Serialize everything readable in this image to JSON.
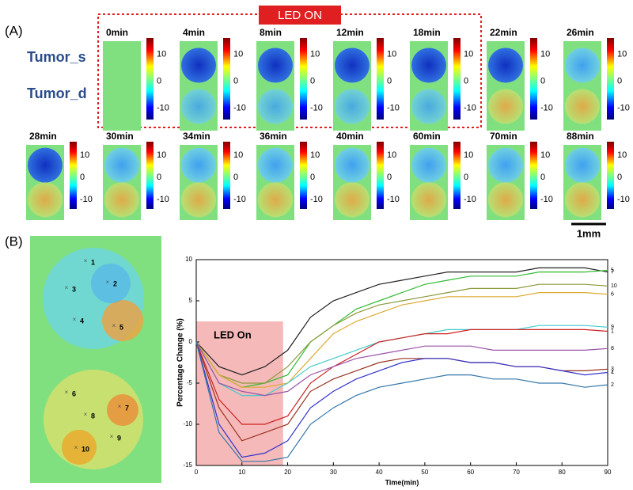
{
  "panel_a": {
    "label": "(A)",
    "led_label": "LED ON",
    "rows": [
      "Tumor_s",
      "Tumor_d"
    ],
    "frames": [
      "0min",
      "4min",
      "8min",
      "12min",
      "18min",
      "22min",
      "26min",
      "28min",
      "30min",
      "34min",
      "36min",
      "40min",
      "60min",
      "70min",
      "88min"
    ],
    "colorbar_ticks": [
      10,
      0,
      -10
    ],
    "scale_bar": "1mm"
  },
  "panel_b": {
    "label": "(B)",
    "map_points": [
      "1",
      "2",
      "3",
      "4",
      "5",
      "6",
      "7",
      "8",
      "9",
      "10"
    ]
  },
  "chart_data": {
    "type": "line",
    "xlabel": "Time(min)",
    "ylabel": "Percentage Change (%)",
    "annotation": "LED On",
    "shade_x": [
      0,
      19
    ],
    "shade_y": [
      -15,
      2.5
    ],
    "x": [
      0,
      5,
      10,
      15,
      20,
      25,
      30,
      35,
      40,
      45,
      50,
      55,
      60,
      65,
      70,
      75,
      80,
      85,
      90
    ],
    "xlim": [
      0,
      90
    ],
    "xticks": [
      0,
      10,
      20,
      30,
      40,
      50,
      60,
      70,
      80,
      90
    ],
    "ylim": [
      -15,
      10
    ],
    "yticks": [
      -15,
      -10,
      -5,
      0,
      5,
      10
    ],
    "series": [
      {
        "name": "7",
        "color": "#222222",
        "values": [
          0,
          -3,
          -4,
          -3,
          -1,
          3,
          5,
          6,
          7,
          7.5,
          8,
          8.5,
          8.5,
          8.5,
          8.5,
          9,
          9,
          9,
          8.5
        ]
      },
      {
        "name": "5",
        "color": "#33bb33",
        "values": [
          0,
          -4,
          -5.5,
          -5,
          -4,
          0,
          2,
          4,
          5,
          6,
          7,
          7.5,
          8,
          8,
          8,
          8.5,
          8.5,
          8.5,
          8.7
        ]
      },
      {
        "name": "10",
        "color": "#8a9a3a",
        "values": [
          0,
          -4,
          -5,
          -5,
          -3,
          0,
          2,
          3.5,
          4.5,
          5,
          5.5,
          6,
          6.5,
          6.5,
          6.5,
          7,
          7,
          7,
          6.8
        ]
      },
      {
        "name": "6",
        "color": "#ddaa33",
        "values": [
          0,
          -4,
          -5.5,
          -5.5,
          -5,
          -2,
          1,
          2.5,
          3.5,
          4.5,
          5,
          5.5,
          5.5,
          5.5,
          5.5,
          6,
          6,
          6,
          5.8
        ]
      },
      {
        "name": "9",
        "color": "#44cccc",
        "values": [
          0,
          -5,
          -6.5,
          -6.5,
          -5,
          -3,
          -2,
          -1,
          0,
          0.5,
          1,
          1.5,
          1.5,
          1.5,
          1.5,
          2,
          2,
          2,
          1.8
        ]
      },
      {
        "name": "1",
        "color": "#cc2222",
        "values": [
          0,
          -7,
          -10,
          -10,
          -9,
          -5,
          -3,
          -1.5,
          0,
          0.5,
          1,
          1,
          1.5,
          1.5,
          1.5,
          1.5,
          1.5,
          1.5,
          1.3
        ]
      },
      {
        "name": "8",
        "color": "#9955aa",
        "values": [
          0,
          -5,
          -6,
          -6.5,
          -6,
          -4,
          -3,
          -2,
          -1.5,
          -1,
          -0.5,
          -0.5,
          -0.5,
          -1,
          -1,
          -1,
          -1,
          -1,
          -0.8
        ]
      },
      {
        "name": "3",
        "color": "#993322",
        "values": [
          0,
          -8,
          -12,
          -11,
          -10,
          -6,
          -4.5,
          -3.5,
          -2.5,
          -2,
          -2,
          -2,
          -2.5,
          -2.5,
          -3,
          -3,
          -3.5,
          -3.5,
          -3.3
        ]
      },
      {
        "name": "4",
        "color": "#3333cc",
        "values": [
          0,
          -10,
          -14,
          -13.5,
          -12,
          -8,
          -6,
          -4.5,
          -3.5,
          -2.5,
          -2,
          -2,
          -2.5,
          -2.5,
          -3,
          -3,
          -3.5,
          -4,
          -3.7
        ]
      },
      {
        "name": "2",
        "color": "#3377aa",
        "values": [
          0,
          -11,
          -14.5,
          -14.5,
          -14,
          -10,
          -8,
          -6.5,
          -5.5,
          -5,
          -4.5,
          -4,
          -4,
          -4.5,
          -4.5,
          -5,
          -5,
          -5.5,
          -5.2
        ]
      }
    ]
  }
}
